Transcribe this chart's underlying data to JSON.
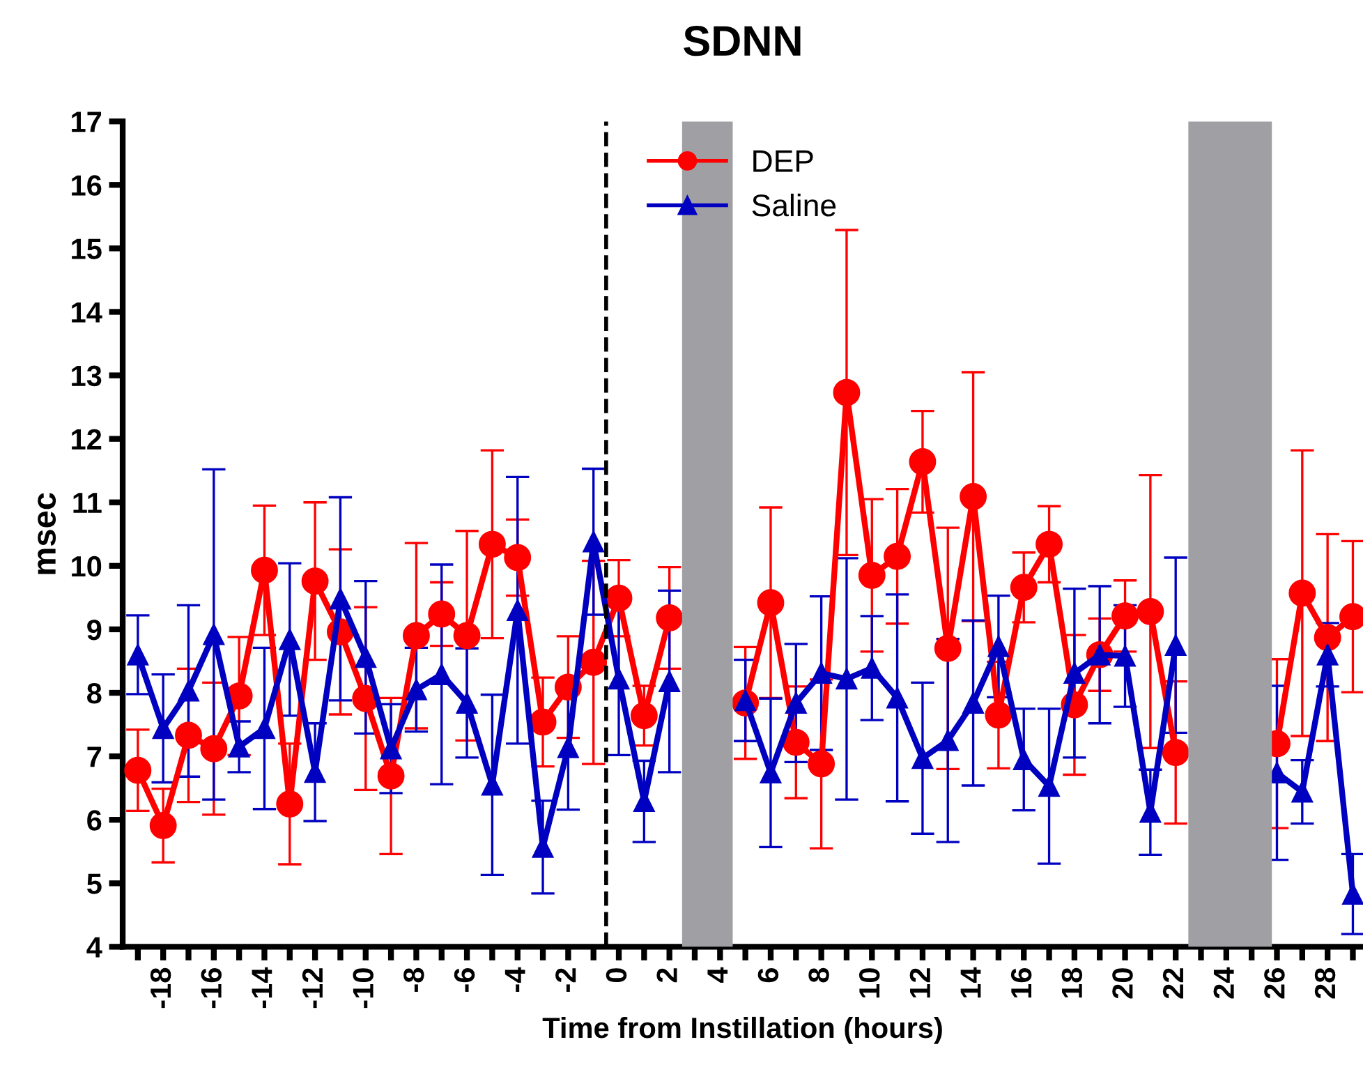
{
  "chart_data": {
    "type": "line",
    "title": "SDNN",
    "xlabel": "Time from Instillation (hours)",
    "ylabel": "msec",
    "x": [
      -19,
      -18,
      -17,
      -16,
      -15,
      -14,
      -13,
      -12,
      -11,
      -10,
      -9,
      -8,
      -7,
      -6,
      -5,
      -4,
      -3,
      -2,
      -1,
      0,
      1,
      2,
      3,
      4,
      5,
      6,
      7,
      8,
      9,
      10,
      11,
      12,
      13,
      14,
      15,
      16,
      17,
      18,
      19,
      20,
      21,
      22,
      23,
      24,
      25,
      26,
      27,
      28,
      29
    ],
    "xlim": [
      -19.6,
      29.4
    ],
    "xticks": [
      {
        "value": -19,
        "label": null
      },
      -18,
      {
        "value": -17,
        "label": null
      },
      -16,
      {
        "value": -15,
        "label": null
      },
      -14,
      {
        "value": -13,
        "label": null
      },
      -12,
      {
        "value": -11,
        "label": null
      },
      -10,
      {
        "value": -9,
        "label": null
      },
      -8,
      {
        "value": -7,
        "label": null
      },
      -6,
      {
        "value": -5,
        "label": null
      },
      -4,
      {
        "value": -3,
        "label": null
      },
      -2,
      {
        "value": -1,
        "label": null
      },
      0,
      {
        "value": 1,
        "label": null
      },
      2,
      {
        "value": 3,
        "label": null
      },
      4,
      {
        "value": 5,
        "label": null
      },
      6,
      {
        "value": 7,
        "label": null
      },
      8,
      {
        "value": 9,
        "label": null
      },
      10,
      {
        "value": 11,
        "label": null
      },
      12,
      {
        "value": 13,
        "label": null
      },
      14,
      {
        "value": 15,
        "label": null
      },
      16,
      {
        "value": 17,
        "label": null
      },
      18,
      {
        "value": 19,
        "label": null
      },
      20,
      {
        "value": 21,
        "label": null
      },
      22,
      {
        "value": 23,
        "label": null
      },
      24,
      {
        "value": 25,
        "label": null
      },
      26,
      {
        "value": 27,
        "label": null
      },
      28,
      {
        "value": 29,
        "label": null
      }
    ],
    "ylim": [
      4,
      17
    ],
    "yticks": [
      4,
      5,
      6,
      7,
      8,
      9,
      10,
      11,
      12,
      13,
      14,
      15,
      16,
      17
    ],
    "grid": false,
    "legend": "top",
    "line_style": "solid",
    "series": [
      {
        "name": "DEP",
        "color": "#ff0000",
        "marker": "circle",
        "values": [
          6.78,
          5.91,
          7.33,
          7.12,
          7.95,
          9.93,
          6.25,
          9.76,
          8.96,
          7.91,
          6.69,
          8.9,
          9.24,
          8.9,
          10.34,
          10.13,
          7.54,
          8.09,
          8.48,
          9.49,
          7.64,
          9.18,
          null,
          null,
          7.84,
          9.42,
          7.22,
          6.88,
          12.73,
          9.85,
          10.15,
          11.64,
          8.7,
          11.09,
          7.65,
          9.66,
          10.34,
          7.81,
          8.6,
          9.21,
          9.28,
          7.06,
          null,
          null,
          null,
          7.2,
          9.57,
          8.87,
          9.2
        ],
        "errors": [
          0.64,
          0.58,
          1.05,
          1.04,
          0.93,
          1.02,
          0.95,
          1.24,
          1.3,
          1.44,
          1.23,
          1.46,
          0.5,
          1.65,
          1.48,
          0.6,
          0.7,
          0.8,
          1.6,
          0.6,
          0.47,
          0.8,
          null,
          null,
          0.88,
          1.5,
          0.88,
          1.33,
          2.56,
          1.2,
          1.06,
          0.8,
          1.9,
          1.96,
          0.84,
          0.55,
          0.6,
          1.1,
          0.57,
          0.56,
          2.15,
          1.12,
          null,
          null,
          null,
          1.33,
          2.25,
          1.63,
          1.19
        ]
      },
      {
        "name": "Saline",
        "color": "#0000c0",
        "marker": "triangle",
        "values": [
          8.6,
          7.44,
          8.03,
          8.92,
          7.15,
          7.44,
          8.84,
          6.75,
          9.48,
          8.56,
          7.12,
          8.05,
          8.29,
          7.84,
          6.55,
          9.3,
          5.57,
          7.14,
          10.38,
          8.22,
          6.29,
          8.18,
          null,
          null,
          7.88,
          6.74,
          7.84,
          8.31,
          8.22,
          8.39,
          7.92,
          6.97,
          7.25,
          7.84,
          8.73,
          6.95,
          6.53,
          8.31,
          8.6,
          8.58,
          6.12,
          8.75,
          null,
          null,
          null,
          6.74,
          6.44,
          8.6,
          4.83
        ],
        "errors": [
          0.62,
          0.85,
          1.35,
          2.6,
          0.4,
          1.27,
          1.2,
          0.77,
          1.6,
          1.2,
          0.7,
          0.66,
          1.73,
          0.86,
          1.42,
          2.1,
          0.73,
          0.98,
          1.15,
          1.2,
          0.64,
          1.43,
          null,
          null,
          0.64,
          1.17,
          0.93,
          1.21,
          1.9,
          0.82,
          1.63,
          1.19,
          1.6,
          1.3,
          0.8,
          0.8,
          1.22,
          1.33,
          1.08,
          0.8,
          0.67,
          1.38,
          null,
          null,
          null,
          1.37,
          0.5,
          0.5,
          0.63
        ]
      }
    ],
    "ref_lines": [
      {
        "axis": "x",
        "value": -0.5,
        "color": "#000000",
        "line_style": "dashed"
      }
    ],
    "bands": [
      {
        "axis": "x",
        "from": 2.5,
        "to": 4.5,
        "color": "#a0a0a4"
      },
      {
        "axis": "x",
        "from": 22.5,
        "to": 25.8,
        "color": "#a0a0a4"
      }
    ]
  }
}
